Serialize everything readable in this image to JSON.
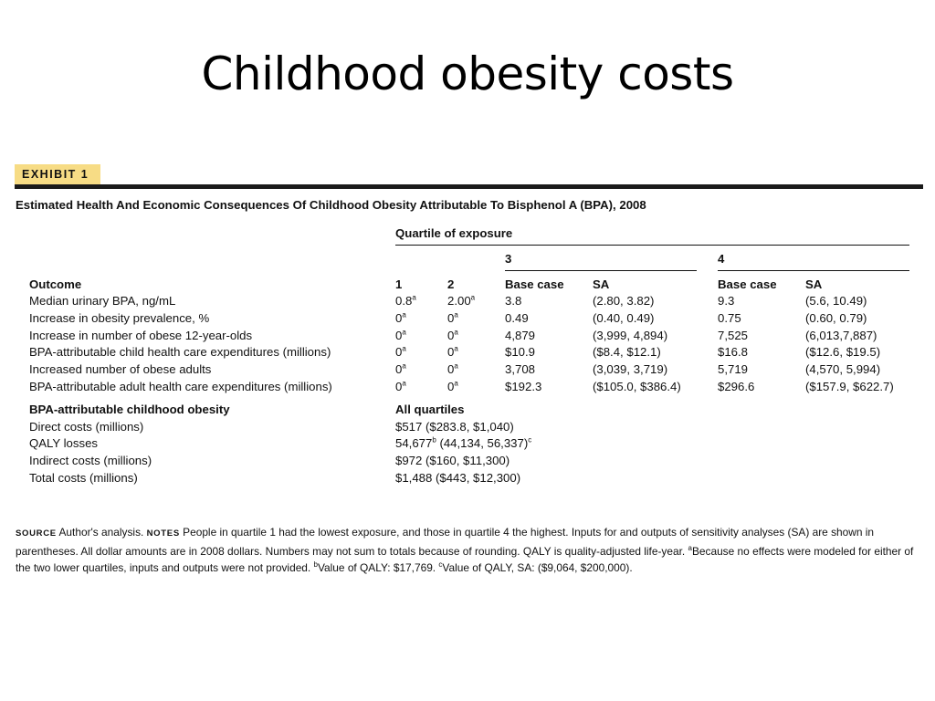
{
  "slide_title": "Childhood obesity costs",
  "exhibit": {
    "tag": "EXHIBIT 1",
    "title": "Estimated Health And Economic Consequences Of Childhood Obesity Attributable To Bisphenol A (BPA), 2008"
  },
  "table": {
    "quartile_header": "Quartile of exposure",
    "q3_label": "3",
    "q4_label": "4",
    "columns": {
      "outcome": "Outcome",
      "q1": "1",
      "q2": "2",
      "q3_base": "Base case",
      "q3_sa": "SA",
      "q4_base": "Base case",
      "q4_sa": "SA"
    },
    "rows": [
      {
        "outcome": "Median urinary BPA, ng/mL",
        "q1": "0.8",
        "q1_sup": "a",
        "q2": "2.00",
        "q2_sup": "a",
        "q3_base": "3.8",
        "q3_sa": "(2.80, 3.82)",
        "q4_base": "9.3",
        "q4_sa": "(5.6, 10.49)"
      },
      {
        "outcome": "Increase in obesity prevalence, %",
        "q1": "0",
        "q1_sup": "a",
        "q2": "0",
        "q2_sup": "a",
        "q3_base": "0.49",
        "q3_sa": "(0.40, 0.49)",
        "q4_base": "0.75",
        "q4_sa": "(0.60, 0.79)"
      },
      {
        "outcome": "Increase in number of obese 12-year-olds",
        "q1": "0",
        "q1_sup": "a",
        "q2": "0",
        "q2_sup": "a",
        "q3_base": "4,879",
        "q3_sa": "(3,999, 4,894)",
        "q4_base": "7,525",
        "q4_sa": "(6,013,7,887)"
      },
      {
        "outcome": "BPA-attributable child health care expenditures (millions)",
        "q1": "0",
        "q1_sup": "a",
        "q2": "0",
        "q2_sup": "a",
        "q3_base": "$10.9",
        "q3_sa": "($8.4, $12.1)",
        "q4_base": "$16.8",
        "q4_sa": "($12.6, $19.5)"
      },
      {
        "outcome": "Increased number of obese adults",
        "q1": "0",
        "q1_sup": "a",
        "q2": "0",
        "q2_sup": "a",
        "q3_base": "3,708",
        "q3_sa": "(3,039, 3,719)",
        "q4_base": "5,719",
        "q4_sa": "(4,570, 5,994)"
      },
      {
        "outcome": "BPA-attributable adult health care expenditures (millions)",
        "q1": "0",
        "q1_sup": "a",
        "q2": "0",
        "q2_sup": "a",
        "q3_base": "$192.3",
        "q3_sa": "($105.0, $386.4)",
        "q4_base": "$296.6",
        "q4_sa": "($157.9, $622.7)"
      }
    ],
    "section2": {
      "heading": "BPA-attributable childhood obesity",
      "all_quartiles": "All quartiles",
      "rows": [
        {
          "label": "Direct costs (millions)",
          "value": "$517 ($283.8, $1,040)"
        },
        {
          "label": "QALY losses",
          "value_a": "54,677",
          "sup_a": "b",
          "value_b": " (44,134, 56,337)",
          "sup_b": "c"
        },
        {
          "label": "Indirect costs (millions)",
          "value": "$972 ($160, $11,300)"
        },
        {
          "label": "Total costs (millions)",
          "value": "$1,488 ($443, $12,300)"
        }
      ]
    }
  },
  "footer": {
    "source_label": "SOURCE",
    "source_text": " Author's analysis. ",
    "notes_label": "NOTES",
    "notes_text": " People in quartile 1 had the lowest exposure, and those in quartile 4 the highest. Inputs for and outputs of sensitivity analyses (SA) are shown in parentheses. All dollar amounts are in 2008 dollars. Numbers may not sum to totals because of rounding. QALY is quality-adjusted life-year. ",
    "note_a_sup": "a",
    "note_a_text": "Because no effects were modeled for either of the two lower quartiles, inputs and outputs were not provided. ",
    "note_b_sup": "b",
    "note_b_text": "Value of QALY: $17,769. ",
    "note_c_sup": "c",
    "note_c_text": "Value of QALY, SA: ($9,064, $200,000)."
  }
}
